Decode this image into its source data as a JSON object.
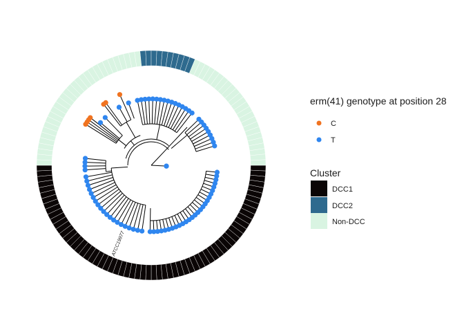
{
  "legend_genotype": {
    "title": "erm(41) genotype at position 28",
    "items": [
      {
        "label": "C",
        "color": "#f07320"
      },
      {
        "label": "T",
        "color": "#2f86ef"
      }
    ]
  },
  "legend_cluster": {
    "title": "Cluster",
    "items": [
      {
        "label": "DCC1",
        "color": "#0b0606"
      },
      {
        "label": "DCC2",
        "color": "#2e6a8e"
      },
      {
        "label": "Non-DCC",
        "color": "#d9f4e2"
      }
    ]
  },
  "tree": {
    "tip_label": "ATCC19977",
    "ring": [
      {
        "cluster": "DCC2",
        "from_deg": 263,
        "to_deg": 292
      },
      {
        "cluster": "Non-DCC",
        "from_deg": 292,
        "to_deg": 360
      },
      {
        "cluster": "DCC1",
        "from_deg": 0,
        "to_deg": 180
      },
      {
        "cluster": "Non-DCC",
        "from_deg": 180,
        "to_deg": 263
      }
    ],
    "tips": [
      {
        "genotype": "C",
        "n": 4,
        "from_deg": 212,
        "to_deg": 218
      },
      {
        "genotype": "T",
        "n": 1,
        "from_deg": 220,
        "to_deg": 220
      },
      {
        "genotype": "T",
        "n": 1,
        "from_deg": 226,
        "to_deg": 226
      },
      {
        "genotype": "C",
        "n": 2,
        "from_deg": 232,
        "to_deg": 234
      },
      {
        "genotype": "T",
        "n": 1,
        "from_deg": 241,
        "to_deg": 241
      },
      {
        "genotype": "C",
        "n": 1,
        "from_deg": 246,
        "to_deg": 246
      },
      {
        "genotype": "T",
        "n": 1,
        "from_deg": 250,
        "to_deg": 250
      },
      {
        "genotype": "T",
        "n": 16,
        "from_deg": 258,
        "to_deg": 308
      },
      {
        "genotype": "T",
        "n": 9,
        "from_deg": 316,
        "to_deg": 343
      },
      {
        "genotype": "T",
        "n": 2,
        "from_deg": 3,
        "to_deg": 3
      },
      {
        "genotype": "T",
        "n": 27,
        "from_deg": 6,
        "to_deg": 91
      },
      {
        "genotype": "T",
        "n": 20,
        "from_deg": 98,
        "to_deg": 170
      },
      {
        "genotype": "T",
        "n": 4,
        "from_deg": 176,
        "to_deg": 186
      }
    ]
  }
}
